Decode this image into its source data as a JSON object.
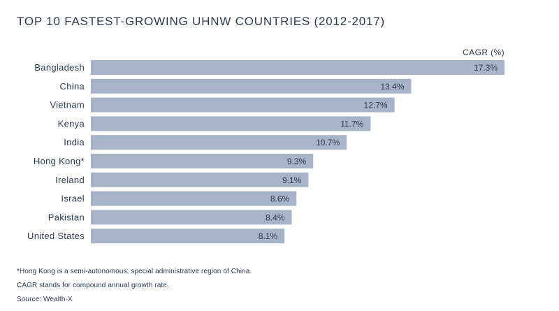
{
  "chart_data": {
    "type": "bar",
    "orientation": "horizontal",
    "title": "TOP 10 FASTEST-GROWING UHNW COUNTRIES (2012-2017)",
    "unit_label": "CAGR (%)",
    "categories": [
      "Bangladesh",
      "China",
      "Vietnam",
      "Kenya",
      "India",
      "Hong Kong*",
      "Ireland",
      "Israel",
      "Pakistan",
      "United States"
    ],
    "values": [
      17.3,
      13.4,
      12.7,
      11.7,
      10.7,
      9.3,
      9.1,
      8.6,
      8.4,
      8.1
    ],
    "value_labels": [
      "17.3%",
      "13.4%",
      "12.7%",
      "11.7%",
      "10.7%",
      "9.3%",
      "9.1%",
      "8.6%",
      "8.4%",
      "8.1%"
    ],
    "xlim": [
      0,
      17.3
    ],
    "grid": false,
    "legend": "none",
    "bar_color": "#a7b3c9"
  },
  "notes": {
    "hong_kong": "*Hong Kong is a semi-autonomous, special administrative region of China.",
    "cagr": "CAGR stands for compound annual growth rate.",
    "source": "Source: Wealth-X"
  }
}
